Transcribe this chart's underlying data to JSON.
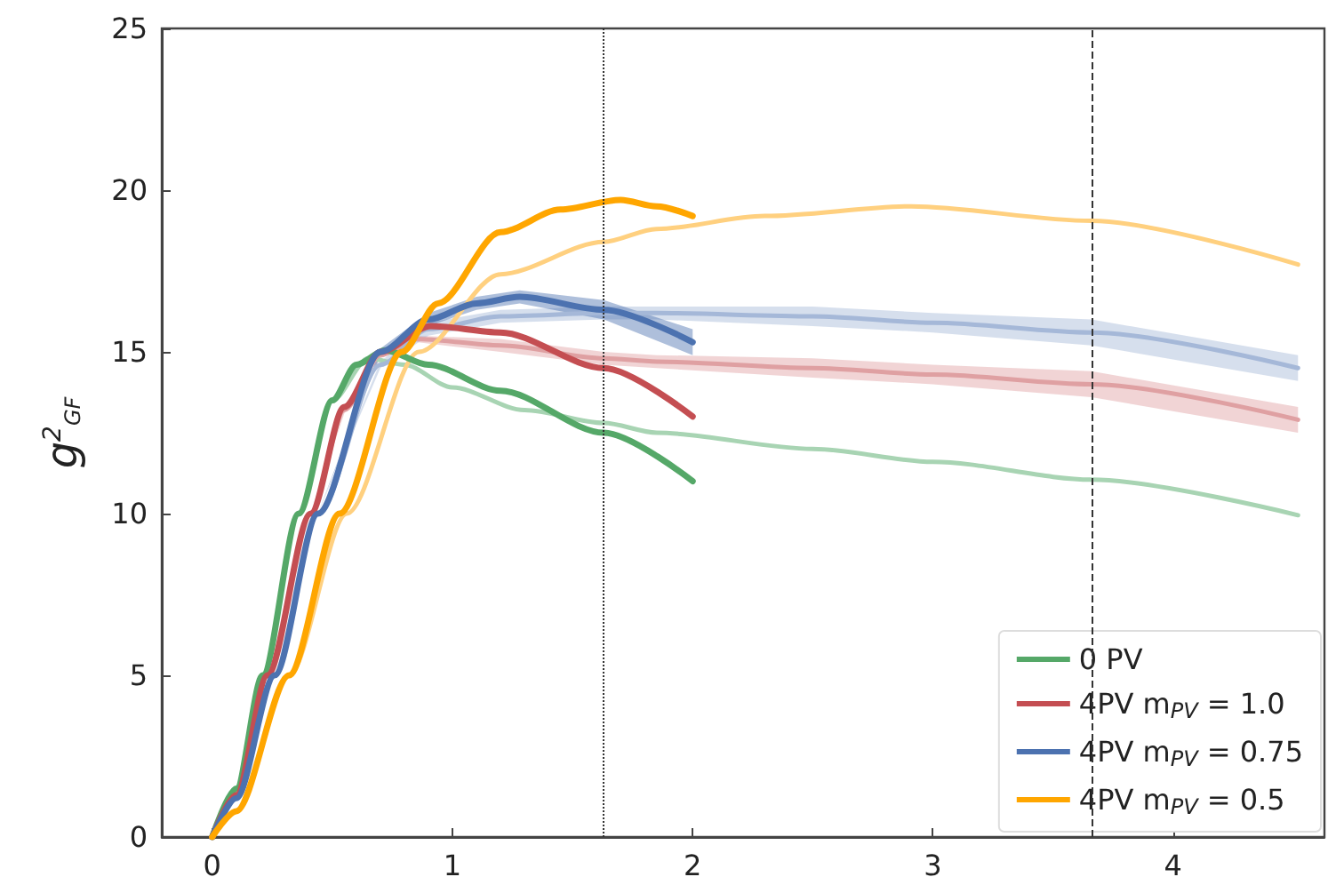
{
  "chart_data": {
    "type": "line",
    "ylabel": "g$^{2}$$_{GF}$",
    "xlim": [
      -0.21,
      4.63
    ],
    "ylim": [
      0,
      25
    ],
    "xticks": [
      0,
      1,
      2,
      3,
      4
    ],
    "yticks": [
      0,
      5,
      10,
      15,
      20,
      25
    ],
    "grid": false,
    "legend": "bottom right",
    "line_style": "solid",
    "marker": "none",
    "ref_lines": [
      {
        "axis": "x",
        "value": 1.63,
        "color": "#333333",
        "line_style": "dotted"
      },
      {
        "axis": "x",
        "value": 3.66,
        "color": "#333333",
        "line_style": "dashed"
      }
    ],
    "series": [
      {
        "color": "#a8d4b3",
        "x": [
          0,
          0.1,
          0.21,
          0.36,
          0.5,
          0.65,
          0.8,
          1.0,
          1.3,
          1.63,
          1.85,
          2.5,
          3.0,
          3.66,
          4.52
        ],
        "values": [
          0,
          1.5,
          5,
          10,
          13.5,
          14.8,
          14.6,
          13.9,
          13.2,
          12.8,
          12.5,
          12.0,
          11.6,
          11.05,
          9.95
        ]
      },
      {
        "color": "#dfa0a2",
        "x": [
          0,
          0.1,
          0.23,
          0.41,
          0.55,
          0.7,
          0.85,
          1.2,
          1.63,
          1.85,
          2.5,
          3.0,
          3.66,
          4.52
        ],
        "values": [
          0,
          1.3,
          5,
          10,
          13.2,
          14.9,
          15.4,
          15.2,
          14.8,
          14.7,
          14.5,
          14.3,
          14.0,
          12.9
        ],
        "lower": [
          0,
          1.3,
          5,
          10,
          13.1,
          14.8,
          15.3,
          15.0,
          14.6,
          14.5,
          14.2,
          14.0,
          13.6,
          12.5
        ],
        "upper": [
          0,
          1.3,
          5,
          10,
          13.3,
          15.0,
          15.5,
          15.4,
          15.0,
          14.9,
          14.8,
          14.6,
          14.4,
          13.3
        ]
      },
      {
        "color": "#a5b8d8",
        "x": [
          0,
          0.1,
          0.26,
          0.44,
          0.7,
          0.9,
          1.2,
          1.63,
          1.85,
          2.5,
          3.0,
          3.66,
          4.52
        ],
        "values": [
          0,
          1.2,
          5,
          10,
          14.6,
          15.7,
          16.1,
          16.2,
          16.2,
          16.1,
          15.9,
          15.6,
          14.5
        ],
        "lower": [
          0,
          1.2,
          5,
          10,
          14.5,
          15.5,
          15.9,
          16.0,
          16.0,
          15.8,
          15.6,
          15.2,
          14.1
        ],
        "upper": [
          0,
          1.2,
          5,
          10,
          14.7,
          15.9,
          16.3,
          16.4,
          16.4,
          16.4,
          16.2,
          16.0,
          14.9
        ]
      },
      {
        "color": "#ffd07f",
        "x": [
          0,
          0.1,
          0.32,
          0.56,
          0.86,
          1.2,
          1.63,
          1.85,
          2.3,
          2.91,
          3.66,
          4.52
        ],
        "values": [
          0,
          0.8,
          5,
          10,
          15,
          17.4,
          18.4,
          18.8,
          19.2,
          19.5,
          19.05,
          17.7
        ]
      },
      {
        "name": "0 PV",
        "color": "#55a868",
        "x": [
          0,
          0.1,
          0.21,
          0.36,
          0.5,
          0.6,
          0.72,
          0.9,
          1.2,
          1.63,
          2.0
        ],
        "values": [
          0,
          1.5,
          5,
          10,
          13.5,
          14.6,
          15.05,
          14.6,
          13.8,
          12.5,
          11.0
        ]
      },
      {
        "name": "4PV m$_{PV}$ = 1.0",
        "color": "#c44e52",
        "x": [
          0,
          0.1,
          0.23,
          0.41,
          0.55,
          0.7,
          0.91,
          1.2,
          1.63,
          2.0
        ],
        "values": [
          0,
          1.3,
          5,
          10,
          13.3,
          15.0,
          15.8,
          15.6,
          14.5,
          13.0
        ]
      },
      {
        "name": "4PV m$_{PV}$ = 0.75",
        "color": "#4c72b0",
        "x": [
          0,
          0.1,
          0.26,
          0.44,
          0.7,
          0.9,
          1.1,
          1.28,
          1.63,
          2.0
        ],
        "values": [
          0,
          1.2,
          5,
          10,
          15,
          16.0,
          16.5,
          16.7,
          16.3,
          15.3
        ],
        "lower": [
          0,
          1.2,
          5,
          10,
          14.9,
          15.8,
          16.3,
          16.5,
          16.0,
          14.9
        ],
        "upper": [
          0,
          1.2,
          5,
          10,
          15.1,
          16.2,
          16.7,
          16.9,
          16.6,
          15.7
        ]
      },
      {
        "name": "4PV m$_{PV}$ = 0.5",
        "color": "#ffa600",
        "x": [
          0,
          0.1,
          0.32,
          0.53,
          0.79,
          0.94,
          1.2,
          1.45,
          1.7,
          1.85,
          2.0
        ],
        "values": [
          0,
          0.8,
          5,
          10,
          15,
          16.5,
          18.7,
          19.4,
          19.7,
          19.5,
          19.2
        ]
      }
    ]
  }
}
